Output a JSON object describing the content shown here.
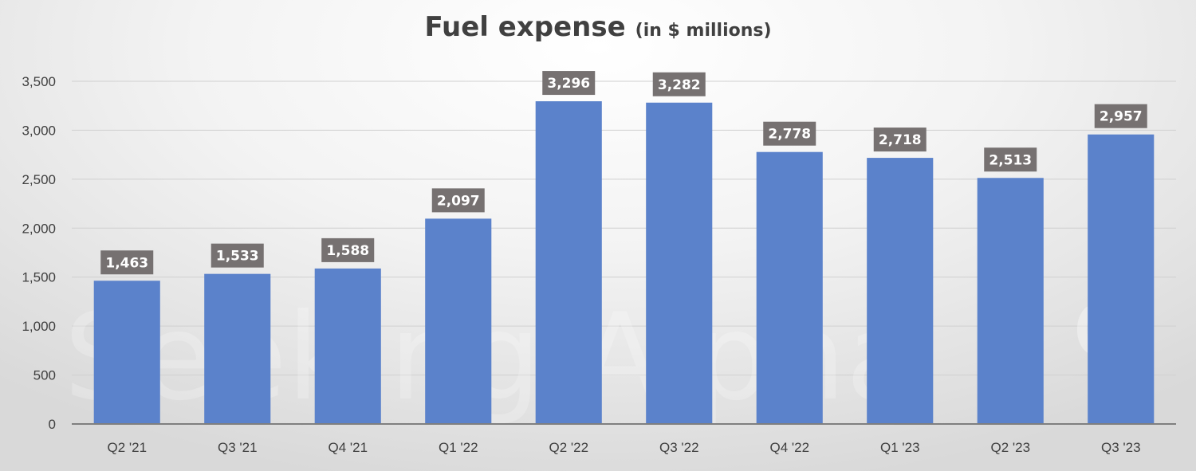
{
  "chart_data": {
    "type": "bar",
    "title": "Fuel expense",
    "subtitle": "(in $ millions)",
    "categories": [
      "Q2 '21",
      "Q3 '21",
      "Q4 '21",
      "Q1 '22",
      "Q2 '22",
      "Q3 '22",
      "Q4 '22",
      "Q1 '23",
      "Q2 '23",
      "Q3 '23"
    ],
    "values": [
      1463,
      1533,
      1588,
      2097,
      3296,
      3282,
      2778,
      2718,
      2513,
      2957
    ],
    "data_labels": [
      "1,463",
      "1,533",
      "1,588",
      "2,097",
      "3,296",
      "3,282",
      "2,778",
      "2,718",
      "2,513",
      "2,957"
    ],
    "y_ticks": [
      0,
      500,
      1000,
      1500,
      2000,
      2500,
      3000,
      3500
    ],
    "y_tick_labels": [
      "0",
      "500",
      "1,000",
      "1,500",
      "2,000",
      "2,500",
      "3,000",
      "3,500"
    ],
    "ylim": [
      0,
      3500
    ],
    "xlabel": "",
    "ylabel": "",
    "grid": true,
    "legend": "none",
    "colors": {
      "bar": "#5b82cb",
      "label_box": "#767171",
      "label_text": "#ffffff",
      "gridline": "#d0d0d0",
      "axis_line": "#7f7f7f",
      "text": "#404040"
    }
  },
  "watermark": {
    "text": "Seeking Alpha",
    "symbol": "α"
  }
}
